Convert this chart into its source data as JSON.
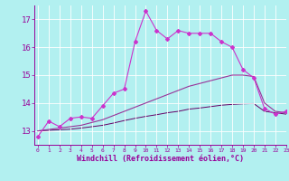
{
  "xlabel": "Windchill (Refroidissement éolien,°C)",
  "bg_color": "#b2f0f0",
  "grid_color": "#ffffff",
  "line_color1": "#cc33cc",
  "line_color2": "#993399",
  "line_color3": "#660066",
  "x_ticks": [
    0,
    1,
    2,
    3,
    4,
    5,
    6,
    7,
    8,
    9,
    10,
    11,
    12,
    13,
    14,
    15,
    16,
    17,
    18,
    19,
    20,
    21,
    22,
    23
  ],
  "ylim": [
    12.5,
    17.5
  ],
  "xlim": [
    -0.3,
    23
  ],
  "series1_x": [
    0,
    1,
    2,
    3,
    4,
    5,
    6,
    7,
    8,
    9,
    10,
    11,
    12,
    13,
    14,
    15,
    16,
    17,
    18,
    19,
    20,
    21,
    22,
    23
  ],
  "series1_y": [
    12.8,
    13.35,
    13.15,
    13.45,
    13.5,
    13.45,
    13.9,
    14.35,
    14.5,
    16.2,
    17.3,
    16.6,
    16.3,
    16.6,
    16.5,
    16.5,
    16.5,
    16.2,
    16.0,
    15.2,
    14.9,
    13.8,
    13.6,
    13.7
  ],
  "series2_x": [
    0,
    1,
    2,
    3,
    4,
    5,
    6,
    7,
    8,
    9,
    10,
    11,
    12,
    13,
    14,
    15,
    16,
    17,
    18,
    19,
    20,
    21,
    22,
    23
  ],
  "series2_y": [
    13.0,
    13.05,
    13.1,
    13.15,
    13.2,
    13.3,
    13.4,
    13.55,
    13.7,
    13.85,
    14.0,
    14.15,
    14.3,
    14.45,
    14.6,
    14.7,
    14.8,
    14.9,
    15.0,
    15.0,
    14.95,
    14.0,
    13.7,
    13.65
  ],
  "series3_x": [
    0,
    1,
    2,
    3,
    4,
    5,
    6,
    7,
    8,
    9,
    10,
    11,
    12,
    13,
    14,
    15,
    16,
    17,
    18,
    19,
    20,
    21,
    22,
    23
  ],
  "series3_y": [
    13.0,
    13.02,
    13.04,
    13.06,
    13.1,
    13.15,
    13.2,
    13.28,
    13.37,
    13.45,
    13.52,
    13.58,
    13.65,
    13.7,
    13.78,
    13.82,
    13.87,
    13.92,
    13.95,
    13.97,
    13.98,
    13.7,
    13.65,
    13.6
  ],
  "yticks": [
    13,
    14,
    15,
    16,
    17
  ]
}
